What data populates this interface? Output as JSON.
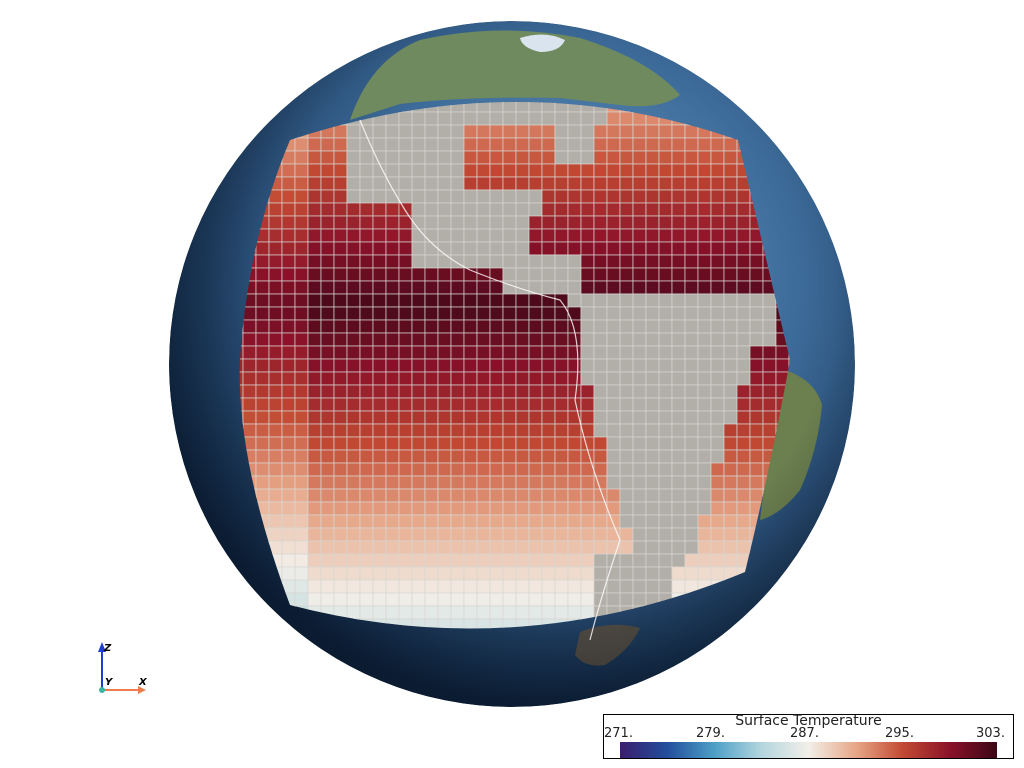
{
  "view": {
    "globe_icon": "earth-globe",
    "colors": {
      "ocean_deep": "#0f2a4a",
      "ocean": "#3f6d9a",
      "land": "#a8a49c",
      "mesh_land": "#b2aea8",
      "grid_line": "#d8d6d2"
    }
  },
  "axes": {
    "x_label": "X",
    "y_label": "Y",
    "z_label": "Z",
    "x_color": "#f07c4c",
    "z_color": "#1d3fd6"
  },
  "colorbar": {
    "title": "Surface Temperature",
    "ticks": [
      "271.",
      "279.",
      "287.",
      "295.",
      "303."
    ],
    "range": [
      271,
      303
    ],
    "colormap": [
      "#3b1e6e",
      "#224e9b",
      "#4d9fc7",
      "#b4d6de",
      "#f2efe8",
      "#e7a788",
      "#c24a33",
      "#8a1229",
      "#3b0716"
    ]
  }
}
